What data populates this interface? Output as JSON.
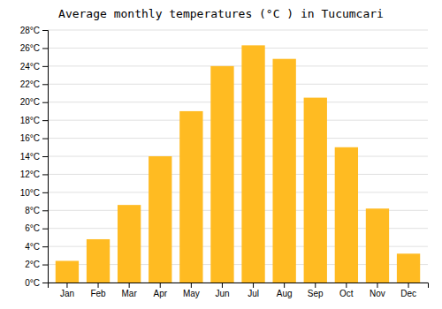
{
  "chart_data": {
    "type": "bar",
    "title": "Average monthly temperatures (°C ) in Tucumcari",
    "categories": [
      "Jan",
      "Feb",
      "Mar",
      "Apr",
      "May",
      "Jun",
      "Jul",
      "Aug",
      "Sep",
      "Oct",
      "Nov",
      "Dec"
    ],
    "values": [
      2.4,
      4.8,
      8.6,
      14.0,
      19.0,
      24.0,
      26.3,
      24.8,
      20.5,
      15.0,
      8.2,
      3.2
    ],
    "color": "#FFBB22",
    "ylim": [
      0,
      28
    ],
    "yticks": [
      {
        "value": 0,
        "label": "0°C"
      },
      {
        "value": 2,
        "label": "2°C"
      },
      {
        "value": 4,
        "label": "4°C"
      },
      {
        "value": 6,
        "label": "6°C"
      },
      {
        "value": 8,
        "label": "8°C"
      },
      {
        "value": 10,
        "label": "10°C"
      },
      {
        "value": 12,
        "label": "12°C"
      },
      {
        "value": 14,
        "label": "14°C"
      },
      {
        "value": 16,
        "label": "16°C"
      },
      {
        "value": 18,
        "label": "18°C"
      },
      {
        "value": 20,
        "label": "20°C"
      },
      {
        "value": 22,
        "label": "22°C"
      },
      {
        "value": 24,
        "label": "24°C"
      },
      {
        "value": 26,
        "label": "26°C"
      },
      {
        "value": 28,
        "label": "28°C"
      }
    ],
    "grid": true
  }
}
